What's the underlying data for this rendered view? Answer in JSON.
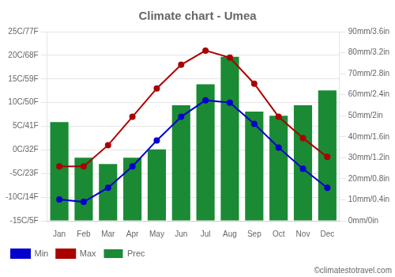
{
  "chart_data": {
    "type": "bar",
    "title": "Climate chart - Umea",
    "annotations": [
      "©climatestotravel.com"
    ],
    "categories": [
      "Jan",
      "Feb",
      "Mar",
      "Apr",
      "May",
      "Jun",
      "Jul",
      "Aug",
      "Sep",
      "Oct",
      "Nov",
      "Dec"
    ],
    "series": [
      {
        "name": "Prec",
        "type": "bar",
        "axis": "y2",
        "color": "#1a8a35",
        "values": [
          47,
          30,
          27,
          30,
          34,
          55,
          65,
          78,
          52,
          50,
          55,
          62
        ]
      },
      {
        "name": "Min",
        "type": "line",
        "marker": "circle",
        "color": "#0000cc",
        "values": [
          -10.5,
          -11,
          -8,
          -3.5,
          2,
          7,
          10.5,
          10,
          5.5,
          0.5,
          -4,
          -8
        ]
      },
      {
        "name": "Max",
        "type": "line",
        "marker": "circle",
        "color": "#aa0000",
        "values": [
          -3.5,
          -3.5,
          1,
          7,
          13,
          18,
          21,
          19.5,
          14,
          7,
          2.5,
          -1.5
        ]
      }
    ],
    "ylim": [
      -15,
      25
    ],
    "yticks": [
      {
        "value": -15,
        "label": "-15C/5F"
      },
      {
        "value": -10,
        "label": "-10C/14F"
      },
      {
        "value": -5,
        "label": "-5C/23F"
      },
      {
        "value": 0,
        "label": "0C/32F"
      },
      {
        "value": 5,
        "label": "5C/41F"
      },
      {
        "value": 10,
        "label": "10C/50F"
      },
      {
        "value": 15,
        "label": "15C/59F"
      },
      {
        "value": 20,
        "label": "20C/68F"
      },
      {
        "value": 25,
        "label": "25C/77F"
      }
    ],
    "y2lim": [
      0,
      90
    ],
    "y2ticks": [
      {
        "value": 0,
        "label": "0mm/0in"
      },
      {
        "value": 10,
        "label": "10mm/0.4in"
      },
      {
        "value": 20,
        "label": "20mm/0.8in"
      },
      {
        "value": 30,
        "label": "30mm/1.2in"
      },
      {
        "value": 40,
        "label": "40mm/1.6in"
      },
      {
        "value": 50,
        "label": "50mm/2in"
      },
      {
        "value": 60,
        "label": "60mm/2.4in"
      },
      {
        "value": 70,
        "label": "70mm/2.8in"
      },
      {
        "value": 80,
        "label": "80mm/3.2in"
      },
      {
        "value": 90,
        "label": "90mm/3.6in"
      }
    ],
    "grid": true,
    "legend": "lower left"
  }
}
